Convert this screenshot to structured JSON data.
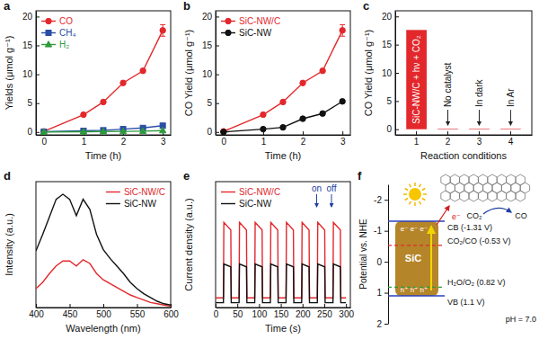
{
  "chart_data": [
    {
      "type": "line",
      "title": "a",
      "x_label": "Time (h)",
      "y_label": "Yields (μmol g⁻¹)",
      "x": [
        0,
        1,
        1.5,
        2,
        2.5,
        3
      ],
      "xlim": [
        -0.2,
        3.2
      ],
      "xticks": [
        0,
        1,
        2,
        3
      ],
      "ylim": [
        -0.5,
        21
      ],
      "yticks": [
        0,
        5,
        10,
        15,
        20
      ],
      "legend": "upper left",
      "series": [
        {
          "name": "CO",
          "color": "#e3282c",
          "marker": "circle",
          "values": [
            0.1,
            3.0,
            5.2,
            8.5,
            10.6,
            17.6
          ],
          "errors": [
            null,
            null,
            null,
            null,
            null,
            1.0
          ]
        },
        {
          "name": "CH₄",
          "color": "#2a4ea6",
          "marker": "square",
          "values": [
            0.05,
            0.2,
            0.3,
            0.5,
            0.7,
            1.1
          ]
        },
        {
          "name": "H₂",
          "color": "#2e9a3c",
          "marker": "triangle",
          "values": [
            0,
            0.05,
            0.08,
            0.1,
            0.15,
            0.25
          ]
        }
      ]
    },
    {
      "type": "line",
      "title": "b",
      "x_label": "Time (h)",
      "y_label": "CO Yield (μmol g⁻¹)",
      "x": [
        0,
        1,
        1.5,
        2,
        2.5,
        3
      ],
      "xlim": [
        -0.2,
        3.2
      ],
      "xticks": [
        0,
        1,
        2,
        3
      ],
      "ylim": [
        -0.5,
        21
      ],
      "yticks": [
        0,
        5,
        10,
        15,
        20
      ],
      "legend": "upper left",
      "series": [
        {
          "name": "SiC-NW/C",
          "color": "#e3282c",
          "marker": "circle",
          "values": [
            0.1,
            3.0,
            5.2,
            8.5,
            10.6,
            17.6
          ],
          "errors": [
            null,
            null,
            null,
            null,
            null,
            1.0
          ]
        },
        {
          "name": "SiC-NW",
          "color": "#111111",
          "marker": "circle",
          "values": [
            0,
            0.5,
            0.8,
            2.3,
            3.2,
            5.3
          ]
        }
      ]
    },
    {
      "type": "bar",
      "title": "c",
      "x_label": "Reaction conditions",
      "y_label": "CO Yield (μmol g⁻¹)",
      "categories": [
        "1",
        "2",
        "3",
        "4"
      ],
      "values": [
        17.6,
        0.1,
        0.1,
        0.1
      ],
      "color": "#e3282c",
      "ylim": [
        -1,
        21
      ],
      "yticks": [
        0,
        5,
        10,
        15,
        20
      ],
      "annotations": [
        "SiC-NW/C + hν + CO₂",
        "No catalyst",
        "In dark",
        "In Ar"
      ]
    },
    {
      "type": "line",
      "title": "d",
      "x_label": "Wavelength (nm)",
      "y_label": "Intensity (a.u.)",
      "x": [
        400,
        410,
        420,
        430,
        440,
        450,
        460,
        470,
        480,
        490,
        500,
        510,
        520,
        530,
        540,
        550,
        560,
        570,
        580,
        590,
        600
      ],
      "xlim": [
        400,
        600
      ],
      "xticks": [
        400,
        450,
        500,
        550,
        600
      ],
      "ylim": [
        0,
        1
      ],
      "tick_labels": "x",
      "legend": "upper right",
      "series": [
        {
          "name": "SiC-NW/C",
          "color": "#e3282c",
          "values": [
            0.15,
            0.2,
            0.27,
            0.33,
            0.37,
            0.37,
            0.33,
            0.38,
            0.35,
            0.27,
            0.22,
            0.19,
            0.16,
            0.13,
            0.1,
            0.08,
            0.06,
            0.04,
            0.03,
            0.02,
            0.01
          ]
        },
        {
          "name": "SiC-NW",
          "color": "#111111",
          "values": [
            0.45,
            0.58,
            0.72,
            0.86,
            0.9,
            0.86,
            0.73,
            0.86,
            0.78,
            0.58,
            0.46,
            0.39,
            0.33,
            0.27,
            0.2,
            0.15,
            0.11,
            0.08,
            0.05,
            0.03,
            0.02
          ]
        }
      ]
    },
    {
      "type": "line",
      "title": "e",
      "x_label": "Time (s)",
      "y_label": "Current density (a.u.)",
      "x": [
        0,
        18,
        19,
        35,
        36,
        54,
        55,
        71,
        72,
        90,
        91,
        107,
        108,
        126,
        127,
        143,
        144,
        162,
        163,
        179,
        180,
        198,
        199,
        215,
        216,
        234,
        235,
        251,
        252,
        270,
        271,
        287,
        288,
        300
      ],
      "xlim": [
        0,
        310
      ],
      "xticks": [
        0,
        50,
        100,
        150,
        200,
        250,
        300
      ],
      "ylim": [
        0,
        1.3
      ],
      "tick_labels": "x",
      "legend": "upper left",
      "annotations": [
        "on",
        "off"
      ],
      "series": [
        {
          "name": "SiC-NW/C",
          "color": "#e3282c",
          "values": [
            0.1,
            0.1,
            0.88,
            0.8,
            0.1,
            0.1,
            0.88,
            0.8,
            0.1,
            0.1,
            0.88,
            0.8,
            0.1,
            0.1,
            0.88,
            0.8,
            0.1,
            0.1,
            0.88,
            0.8,
            0.1,
            0.1,
            0.88,
            0.8,
            0.1,
            0.1,
            0.88,
            0.8,
            0.1,
            0.1,
            0.88,
            0.8,
            0.1,
            0.1
          ]
        },
        {
          "name": "SiC-NW",
          "color": "#111111",
          "values": [
            0.05,
            0.05,
            0.45,
            0.42,
            0.05,
            0.05,
            0.45,
            0.42,
            0.05,
            0.05,
            0.45,
            0.42,
            0.05,
            0.05,
            0.45,
            0.42,
            0.05,
            0.05,
            0.45,
            0.42,
            0.05,
            0.05,
            0.45,
            0.42,
            0.05,
            0.05,
            0.45,
            0.42,
            0.05,
            0.05,
            0.45,
            0.42,
            0.05,
            0.05
          ]
        }
      ]
    },
    {
      "type": "energy_diagram",
      "title": "f",
      "y_label": "Potential vs. NHE",
      "ylim": [
        -2.5,
        2
      ],
      "yticks": [
        -2,
        -1,
        0,
        1,
        2
      ],
      "levels": [
        {
          "label": "CB (-1.31 V)",
          "value": -1.31,
          "color": "#2a3fbf",
          "line_style": "solid"
        },
        {
          "label": "CO₂/CO (-0.53 V)",
          "value": -0.53,
          "color": "#e3282c",
          "line_style": "dashed"
        },
        {
          "label": "H₂O/O₂ (0.82 V)",
          "value": 0.82,
          "color": "#2e9a3c",
          "line_style": "dashed"
        },
        {
          "label": "VB (1.1 V)",
          "value": 1.1,
          "color": "#2a3fbf",
          "line_style": "solid"
        }
      ],
      "annotations": [
        "SiC",
        "e⁻ e⁻ e⁻",
        "h⁺ h⁺ h⁺",
        "e⁻",
        "CO₂",
        "CO",
        "pH = 7.0"
      ]
    }
  ]
}
